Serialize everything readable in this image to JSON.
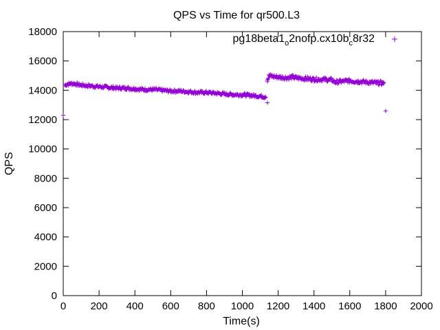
{
  "chart_data": {
    "type": "scatter",
    "title": "QPS vs Time for qr500.L3",
    "xlabel": "Time(s)",
    "ylabel": "QPS",
    "xlim": [
      0,
      2000
    ],
    "ylim": [
      0,
      18000
    ],
    "x_ticks": [
      0,
      200,
      400,
      600,
      800,
      1000,
      1200,
      1400,
      1600,
      1800,
      2000
    ],
    "y_ticks": [
      0,
      2000,
      4000,
      6000,
      8000,
      10000,
      12000,
      14000,
      16000,
      18000
    ],
    "grid": false,
    "legend_position": "top-right",
    "marker": "plus",
    "series": [
      {
        "name": "pg18beta1_o2nofp.cx10b_c8r32",
        "color": "#9400d3",
        "x": [
          0,
          10,
          20,
          40,
          60,
          80,
          100,
          150,
          200,
          250,
          300,
          350,
          400,
          450,
          500,
          550,
          600,
          650,
          700,
          750,
          800,
          850,
          900,
          950,
          1000,
          1050,
          1100,
          1130,
          1140,
          1140,
          1150,
          1170,
          1200,
          1250,
          1280,
          1300,
          1350,
          1400,
          1450,
          1500,
          1520,
          1550,
          1600,
          1650,
          1700,
          1750,
          1790,
          1800
        ],
        "y": [
          12300,
          14350,
          14400,
          14450,
          14450,
          14400,
          14350,
          14300,
          14250,
          14200,
          14150,
          14150,
          14100,
          14050,
          14050,
          14000,
          13950,
          13950,
          13900,
          13850,
          13850,
          13800,
          13750,
          13700,
          13700,
          13650,
          13600,
          13550,
          13150,
          14700,
          15000,
          14950,
          14900,
          14850,
          14900,
          14850,
          14800,
          14750,
          14750,
          14700,
          14550,
          14600,
          14650,
          14600,
          14550,
          14500,
          14500,
          12600
        ]
      }
    ]
  }
}
